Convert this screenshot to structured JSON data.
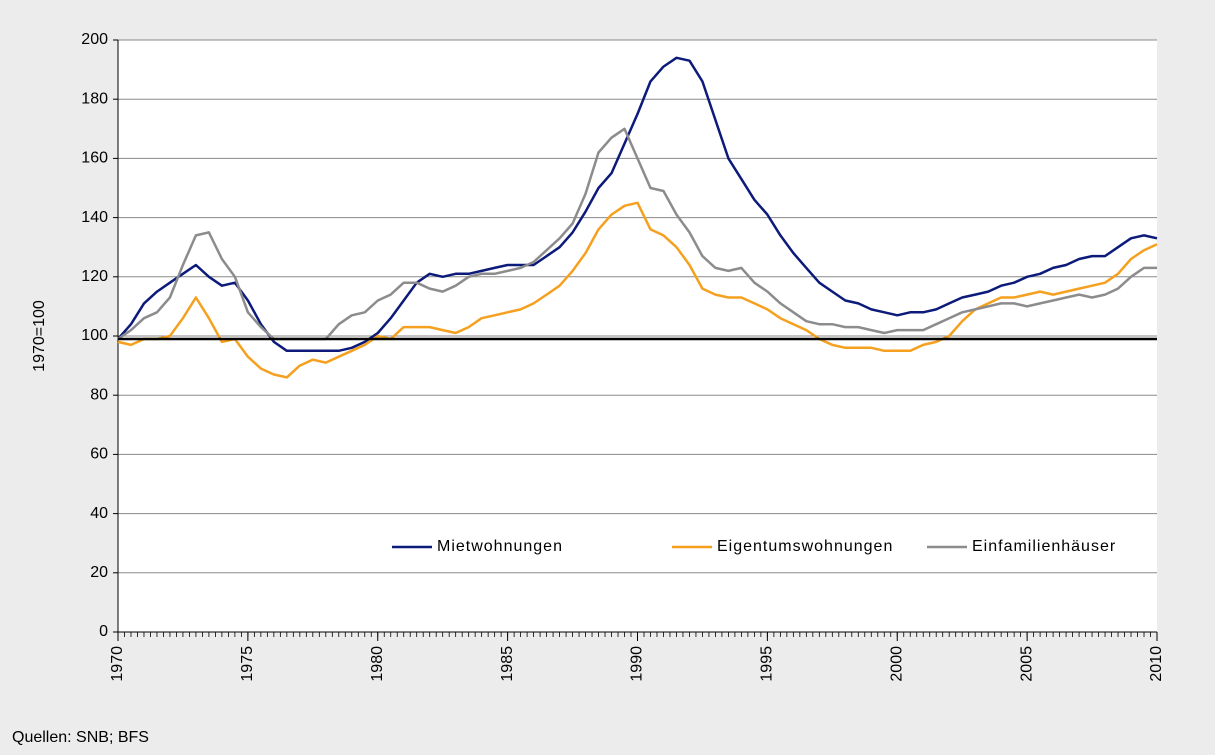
{
  "chart_data": {
    "type": "line",
    "ylabel": "1970=100",
    "source": "Quellen: SNB; BFS",
    "x": [
      1970,
      1970.5,
      1971,
      1971.5,
      1972,
      1972.5,
      1973,
      1973.5,
      1974,
      1974.5,
      1975,
      1975.5,
      1976,
      1976.5,
      1977,
      1977.5,
      1978,
      1978.5,
      1979,
      1979.5,
      1980,
      1980.5,
      1981,
      1981.5,
      1982,
      1982.5,
      1983,
      1983.5,
      1984,
      1984.5,
      1985,
      1985.5,
      1986,
      1986.5,
      1987,
      1987.5,
      1988,
      1988.5,
      1989,
      1989.5,
      1990,
      1990.5,
      1991,
      1991.5,
      1992,
      1992.5,
      1993,
      1993.5,
      1994,
      1994.5,
      1995,
      1995.5,
      1996,
      1996.5,
      1997,
      1997.5,
      1998,
      1998.5,
      1999,
      1999.5,
      2000,
      2000.5,
      2001,
      2001.5,
      2002,
      2002.5,
      2003,
      2003.5,
      2004,
      2004.5,
      2005,
      2005.5,
      2006,
      2006.5,
      2007,
      2007.5,
      2008,
      2008.5,
      2009,
      2009.5,
      2010
    ],
    "series": [
      {
        "name": "Mietwohnungen",
        "color": "#0c1a7a",
        "values": [
          99,
          104,
          111,
          115,
          118,
          121,
          124,
          120,
          117,
          118,
          112,
          104,
          98,
          95,
          95,
          95,
          95,
          95,
          96,
          98,
          101,
          106,
          112,
          118,
          121,
          120,
          121,
          121,
          122,
          123,
          124,
          124,
          124,
          127,
          130,
          135,
          142,
          150,
          155,
          165,
          175,
          186,
          191,
          194,
          193,
          186,
          173,
          160,
          153,
          146,
          141,
          134,
          128,
          123,
          118,
          115,
          112,
          111,
          109,
          108,
          107,
          108,
          108,
          109,
          111,
          113,
          114,
          115,
          117,
          118,
          120,
          121,
          123,
          124,
          126,
          127,
          127,
          130,
          133,
          134,
          133
        ]
      },
      {
        "name": "Eigentumswohnungen",
        "color": "#f5a01e",
        "values": [
          98,
          97,
          99,
          99,
          100,
          106,
          113,
          106,
          98,
          99,
          93,
          89,
          87,
          86,
          90,
          92,
          91,
          93,
          95,
          97,
          100,
          99,
          103,
          103,
          103,
          102,
          101,
          103,
          106,
          107,
          108,
          109,
          111,
          114,
          117,
          122,
          128,
          136,
          141,
          144,
          145,
          136,
          134,
          130,
          124,
          116,
          114,
          113,
          113,
          111,
          109,
          106,
          104,
          102,
          99,
          97,
          96,
          96,
          96,
          95,
          95,
          95,
          97,
          98,
          100,
          105,
          109,
          111,
          113,
          113,
          114,
          115,
          114,
          115,
          116,
          117,
          118,
          121,
          126,
          129,
          131
        ]
      },
      {
        "name": "Einfamilienhäuser",
        "color": "#8c8c8c",
        "values": [
          99,
          102,
          106,
          108,
          113,
          124,
          134,
          135,
          126,
          120,
          108,
          103,
          99,
          99,
          99,
          99,
          99,
          104,
          107,
          108,
          112,
          114,
          118,
          118,
          116,
          115,
          117,
          120,
          121,
          121,
          122,
          123,
          125,
          129,
          133,
          138,
          148,
          162,
          167,
          170,
          160,
          150,
          149,
          141,
          135,
          127,
          123,
          122,
          123,
          118,
          115,
          111,
          108,
          105,
          104,
          104,
          103,
          103,
          102,
          101,
          102,
          102,
          102,
          104,
          106,
          108,
          109,
          110,
          111,
          111,
          110,
          111,
          112,
          113,
          114,
          113,
          114,
          116,
          120,
          123,
          123
        ]
      }
    ],
    "xlim": [
      1970,
      2010
    ],
    "xticks": [
      1970,
      1975,
      1980,
      1985,
      1990,
      1995,
      2000,
      2005,
      2010
    ],
    "x_minor_tick_step": 0.25,
    "ylim": [
      0,
      200
    ],
    "yticks": [
      0,
      20,
      40,
      60,
      80,
      100,
      120,
      140,
      160,
      180,
      200
    ],
    "reference_line": 99,
    "grid": true,
    "legend": "lower right"
  }
}
